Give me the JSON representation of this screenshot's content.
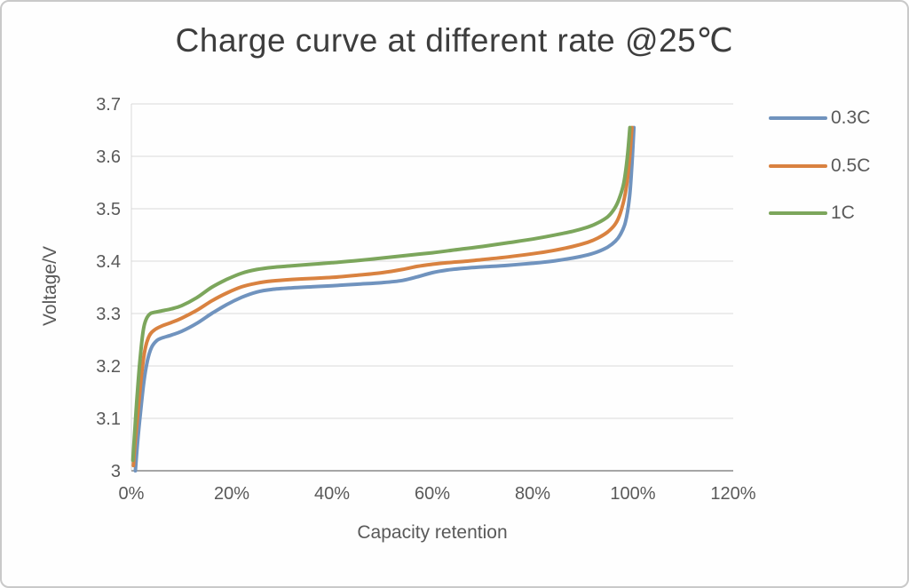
{
  "frame": {
    "background": "#fefefe",
    "border_color": "#c9c9c9"
  },
  "chart_data": {
    "type": "line",
    "title": "Charge curve at different rate @25℃",
    "xlabel": "Capacity retention",
    "ylabel": "Voltage/V",
    "xlim": [
      0,
      120
    ],
    "ylim": [
      3.0,
      3.7
    ],
    "x_ticks": [
      "0%",
      "20%",
      "40%",
      "60%",
      "80%",
      "100%",
      "120%"
    ],
    "x_tick_values": [
      0,
      20,
      40,
      60,
      80,
      100,
      120
    ],
    "y_ticks": [
      "3",
      "3.1",
      "3.2",
      "3.3",
      "3.4",
      "3.5",
      "3.6",
      "3.7"
    ],
    "y_tick_values": [
      3.0,
      3.1,
      3.2,
      3.3,
      3.4,
      3.5,
      3.6,
      3.7
    ],
    "grid": "horizontal",
    "legend_position": "right",
    "colors": {
      "gridline": "#d9d9d9",
      "axis": "#a6a6a6",
      "title_text": "#3d3d3d",
      "tick_text": "#595959"
    },
    "series": [
      {
        "name": "0.3C",
        "color": "#7093be",
        "points": [
          [
            0.8,
            3.0
          ],
          [
            1.2,
            3.05
          ],
          [
            1.8,
            3.11
          ],
          [
            2.5,
            3.17
          ],
          [
            3.2,
            3.21
          ],
          [
            4,
            3.235
          ],
          [
            5,
            3.248
          ],
          [
            6,
            3.253
          ],
          [
            8,
            3.259
          ],
          [
            10,
            3.266
          ],
          [
            13,
            3.281
          ],
          [
            16,
            3.3
          ],
          [
            19,
            3.317
          ],
          [
            22,
            3.331
          ],
          [
            25,
            3.341
          ],
          [
            28,
            3.346
          ],
          [
            32,
            3.349
          ],
          [
            36,
            3.351
          ],
          [
            40,
            3.353
          ],
          [
            45,
            3.356
          ],
          [
            50,
            3.359
          ],
          [
            54,
            3.363
          ],
          [
            57,
            3.37
          ],
          [
            60,
            3.378
          ],
          [
            63,
            3.383
          ],
          [
            67,
            3.387
          ],
          [
            70,
            3.389
          ],
          [
            75,
            3.392
          ],
          [
            80,
            3.396
          ],
          [
            84,
            3.4
          ],
          [
            88,
            3.406
          ],
          [
            91,
            3.412
          ],
          [
            93,
            3.418
          ],
          [
            95,
            3.427
          ],
          [
            96.5,
            3.438
          ],
          [
            97.5,
            3.451
          ],
          [
            98.5,
            3.474
          ],
          [
            99.3,
            3.52
          ],
          [
            99.8,
            3.585
          ],
          [
            100.2,
            3.655
          ]
        ]
      },
      {
        "name": "0.5C",
        "color": "#d98240",
        "points": [
          [
            0.4,
            3.01
          ],
          [
            0.8,
            3.06
          ],
          [
            1.4,
            3.12
          ],
          [
            2.1,
            3.19
          ],
          [
            2.8,
            3.235
          ],
          [
            3.6,
            3.258
          ],
          [
            4.5,
            3.268
          ],
          [
            6,
            3.276
          ],
          [
            8,
            3.283
          ],
          [
            10,
            3.291
          ],
          [
            13,
            3.306
          ],
          [
            16,
            3.324
          ],
          [
            19,
            3.339
          ],
          [
            22,
            3.351
          ],
          [
            25,
            3.358
          ],
          [
            28,
            3.362
          ],
          [
            32,
            3.365
          ],
          [
            36,
            3.367
          ],
          [
            40,
            3.369
          ],
          [
            45,
            3.373
          ],
          [
            50,
            3.378
          ],
          [
            54,
            3.384
          ],
          [
            57,
            3.39
          ],
          [
            60,
            3.394
          ],
          [
            63,
            3.397
          ],
          [
            67,
            3.4
          ],
          [
            70,
            3.403
          ],
          [
            75,
            3.408
          ],
          [
            80,
            3.414
          ],
          [
            84,
            3.42
          ],
          [
            88,
            3.428
          ],
          [
            91,
            3.436
          ],
          [
            93,
            3.444
          ],
          [
            95,
            3.456
          ],
          [
            96.5,
            3.471
          ],
          [
            97.5,
            3.492
          ],
          [
            98.5,
            3.53
          ],
          [
            99.2,
            3.582
          ],
          [
            99.8,
            3.655
          ]
        ]
      },
      {
        "name": "1C",
        "color": "#7ca65c",
        "points": [
          [
            0.3,
            3.02
          ],
          [
            0.7,
            3.08
          ],
          [
            1.2,
            3.15
          ],
          [
            1.8,
            3.22
          ],
          [
            2.4,
            3.27
          ],
          [
            3,
            3.29
          ],
          [
            3.8,
            3.3
          ],
          [
            5,
            3.303
          ],
          [
            6.5,
            3.306
          ],
          [
            8,
            3.309
          ],
          [
            10,
            3.315
          ],
          [
            13,
            3.33
          ],
          [
            16,
            3.35
          ],
          [
            19,
            3.365
          ],
          [
            22,
            3.377
          ],
          [
            25,
            3.384
          ],
          [
            28,
            3.388
          ],
          [
            32,
            3.391
          ],
          [
            36,
            3.394
          ],
          [
            40,
            3.397
          ],
          [
            45,
            3.401
          ],
          [
            50,
            3.406
          ],
          [
            55,
            3.411
          ],
          [
            60,
            3.416
          ],
          [
            65,
            3.422
          ],
          [
            70,
            3.428
          ],
          [
            75,
            3.435
          ],
          [
            80,
            3.442
          ],
          [
            84,
            3.449
          ],
          [
            88,
            3.457
          ],
          [
            91,
            3.465
          ],
          [
            93,
            3.473
          ],
          [
            95,
            3.485
          ],
          [
            96.3,
            3.5
          ],
          [
            97.3,
            3.52
          ],
          [
            98.2,
            3.55
          ],
          [
            98.9,
            3.6
          ],
          [
            99.4,
            3.655
          ]
        ]
      }
    ]
  }
}
